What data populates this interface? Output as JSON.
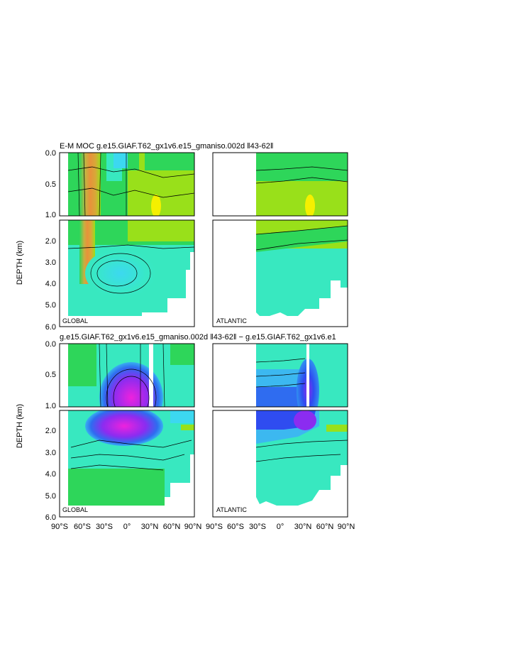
{
  "figure": {
    "top_title": "E-M MOC   g.e15.GIAF.T62_gx1v6.e15_gmaniso.002d  ‖43-62‖",
    "bottom_title": "g.e15.GIAF.T62_gx1v6.e15_gmaniso.002d  ‖43-62‖ − g.e15.GIAF.T62_gx1v6.e1",
    "ylabel": "DEPTH (km)",
    "panel_labels": [
      "GLOBAL",
      "ATLANTIC",
      "GLOBAL",
      "ATLANTIC"
    ],
    "x_ticks": [
      "90°S",
      "60°S",
      "30°S",
      "0°",
      "30°N",
      "60°N",
      "90°N"
    ],
    "y_ticks_upper": [
      "0.0",
      "0.5",
      "1.0"
    ],
    "y_ticks_lower_top": [
      "2.0",
      "3.0",
      "4.0",
      "5.0",
      "6.0"
    ],
    "y_ticks_lower_bottom": [
      "2.0",
      "3.0",
      "4.0",
      "5.0",
      "6.0"
    ]
  },
  "colors": {
    "orange": "#e8923a",
    "yellow_green": "#99e01a",
    "green": "#2ed65a",
    "teal": "#38e8c0",
    "cyan": "#3ce0f0",
    "blue": "#2f6cf0",
    "purple": "#8b2cf0",
    "magenta": "#ee22dd",
    "yellow": "#f5f000"
  },
  "chart_data": [
    {
      "type": "heatmap",
      "title": "E-M MOC   g.e15.GIAF.T62_gx1v6.e15_gmaniso.002d  ‖43-62‖",
      "panel": "GLOBAL",
      "xlabel": "",
      "ylabel": "DEPTH (km)",
      "xlim": [
        -90,
        90
      ],
      "ylim": [
        6.0,
        0.0
      ],
      "x_ticks": [
        -90,
        -60,
        -30,
        0,
        30,
        60,
        90
      ],
      "y_ticks": [
        0.0,
        0.5,
        1.0,
        2.0,
        3.0,
        4.0,
        5.0,
        6.0
      ]
    },
    {
      "type": "heatmap",
      "panel": "ATLANTIC",
      "xlim": [
        -90,
        90
      ],
      "ylim": [
        6.0,
        0.0
      ],
      "data_xrange": [
        -34,
        90
      ]
    },
    {
      "type": "heatmap",
      "title": "g.e15.GIAF.T62_gx1v6.e15_gmaniso.002d  ‖43-62‖ − g.e15.GIAF.T62_gx1v6.e1",
      "panel": "GLOBAL",
      "ylabel": "DEPTH (km)",
      "xlim": [
        -90,
        90
      ],
      "ylim": [
        6.0,
        0.0
      ]
    },
    {
      "type": "heatmap",
      "panel": "ATLANTIC",
      "xlim": [
        -90,
        90
      ],
      "ylim": [
        6.0,
        0.0
      ],
      "data_xrange": [
        -34,
        90
      ]
    }
  ]
}
